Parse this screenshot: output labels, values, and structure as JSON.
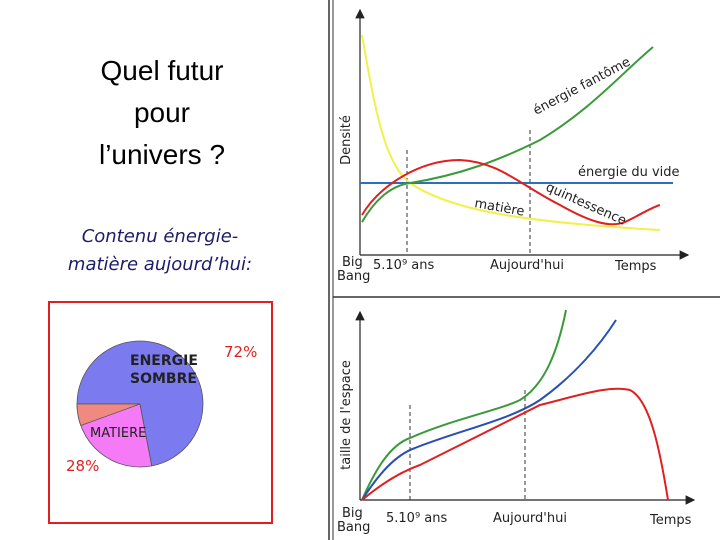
{
  "title": [
    "Quel futur",
    "pour",
    "l’univers ?"
  ],
  "subtitle": [
    "Contenu énergie-",
    "matière aujourd’hui:"
  ],
  "pie": {
    "type": "pie",
    "categories": [
      "ENERGIE SOMBRE",
      "MATIERE"
    ],
    "values": [
      72,
      28
    ],
    "value_labels": [
      "72%",
      "28%"
    ]
  },
  "diagrams": [
    {
      "y_label": "Densité",
      "origin": [
        "Big",
        "Bang"
      ],
      "mark1": "5.10⁹ ans",
      "mark2": "Aujourd'hui",
      "x_label": "Temps",
      "curves": [
        "énergie fantôme",
        "énergie du vide",
        "quintessence",
        "matière"
      ]
    },
    {
      "y_label": "taille de l'espace",
      "origin": [
        "Big",
        "Bang"
      ],
      "mark1": "5.10⁹ ans",
      "mark2": "Aujourd'hui",
      "x_label": "Temps"
    }
  ]
}
